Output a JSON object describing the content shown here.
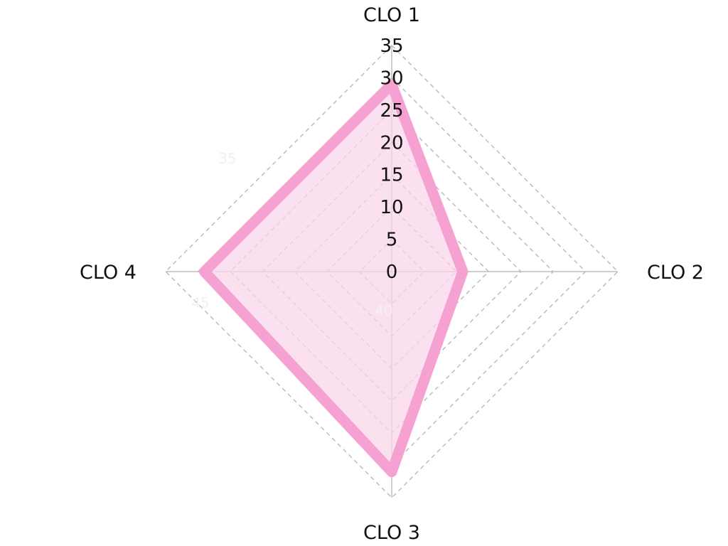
{
  "chart_data": {
    "type": "radar",
    "axes": [
      "CLO 1",
      "CLO 2",
      "CLO 3",
      "CLO 4"
    ],
    "tick_labels": [
      "0",
      "5",
      "10",
      "15",
      "20",
      "25",
      "30",
      "35"
    ],
    "ghost_labels": [
      "35",
      "45",
      "40"
    ],
    "range": [
      0,
      35
    ],
    "grid": true,
    "series": [
      {
        "values": [
          29,
          11,
          31,
          29
        ],
        "color": "#f5a1d2",
        "fill": "#fad5ea"
      }
    ]
  }
}
